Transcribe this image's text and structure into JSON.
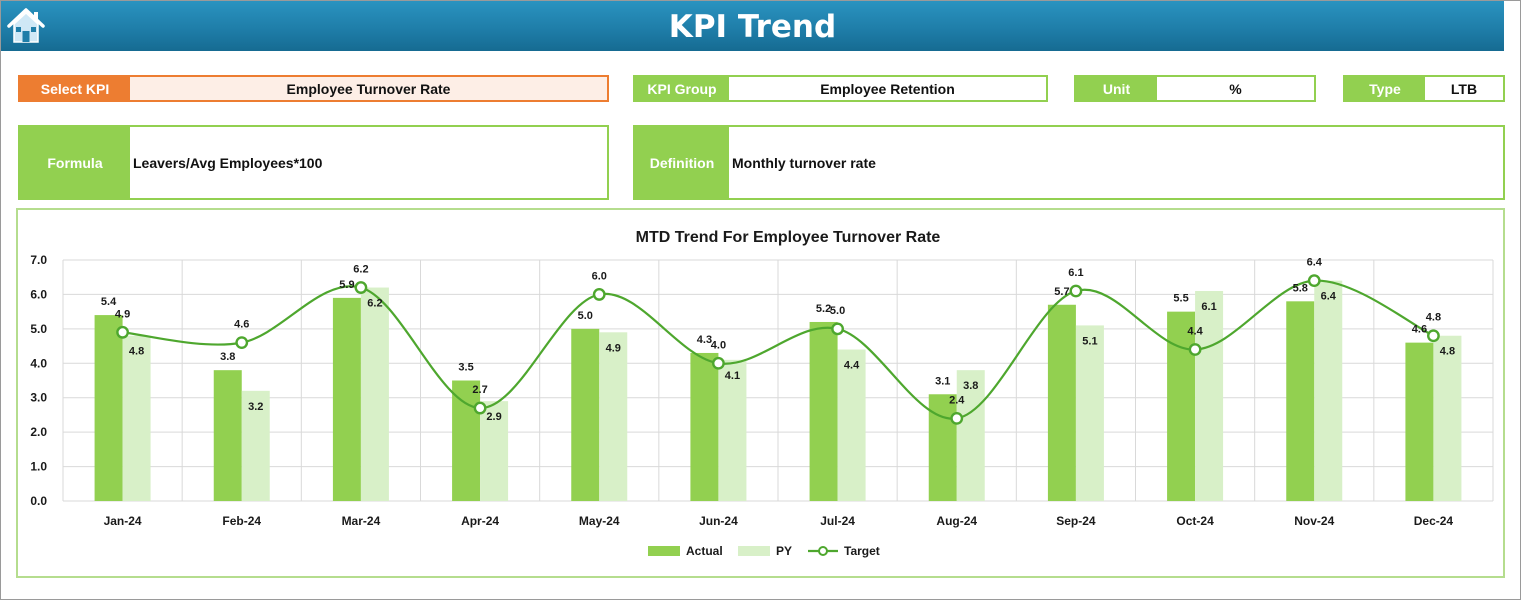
{
  "header": {
    "title": "KPI Trend",
    "home_icon": "home-icon"
  },
  "kpi_select": {
    "label": "Select KPI",
    "value": "Employee Turnover Rate"
  },
  "kpi_group": {
    "label": "KPI Group",
    "value": "Employee Retention"
  },
  "unit": {
    "label": "Unit",
    "value": "%"
  },
  "type": {
    "label": "Type",
    "value": "LTB"
  },
  "formula": {
    "label": "Formula",
    "value": "Leavers/Avg Employees*100"
  },
  "definition": {
    "label": "Definition",
    "value": "Monthly turnover rate"
  },
  "colors": {
    "header": "#1f7ea9",
    "accent_green": "#92d050",
    "kpi_orange": "#ed7d31",
    "actual": "#92d050",
    "py": "#d8f0c8",
    "target": "#4ea72e"
  },
  "chart_data": {
    "type": "bar",
    "title": "MTD Trend For Employee Turnover Rate",
    "xlabel": "",
    "ylabel": "",
    "ylim": [
      0,
      7
    ],
    "yticks": [
      "0.0",
      "1.0",
      "2.0",
      "3.0",
      "4.0",
      "5.0",
      "6.0",
      "7.0"
    ],
    "grid": true,
    "legend": "bottom",
    "categories": [
      "Jan-24",
      "Feb-24",
      "Mar-24",
      "Apr-24",
      "May-24",
      "Jun-24",
      "Jul-24",
      "Aug-24",
      "Sep-24",
      "Oct-24",
      "Nov-24",
      "Dec-24"
    ],
    "series": [
      {
        "name": "Actual",
        "kind": "bar",
        "values": [
          5.4,
          3.8,
          5.9,
          3.5,
          5.0,
          4.3,
          5.2,
          3.1,
          5.7,
          5.5,
          5.8,
          4.6
        ]
      },
      {
        "name": "PY",
        "kind": "bar",
        "values": [
          4.8,
          3.2,
          6.2,
          2.9,
          4.9,
          4.1,
          4.4,
          3.8,
          5.1,
          6.1,
          6.4,
          4.8
        ]
      },
      {
        "name": "Target",
        "kind": "line",
        "values": [
          4.9,
          4.6,
          6.2,
          2.7,
          6.0,
          4.0,
          5.0,
          2.4,
          6.1,
          4.4,
          6.4,
          4.8
        ]
      }
    ]
  }
}
